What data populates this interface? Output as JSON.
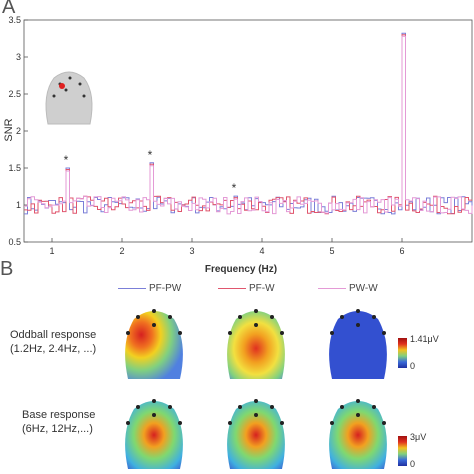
{
  "panels": {
    "a": "A",
    "b": "B"
  },
  "chart_data": {
    "type": "line",
    "xlabel": "Frequency (Hz)",
    "ylabel": "SNR",
    "xlim": [
      0.6,
      7.0
    ],
    "ylim": [
      0.5,
      3.5
    ],
    "xticks": [
      "1",
      "2",
      "3",
      "4",
      "5",
      "6"
    ],
    "yticks": [
      "0.5",
      "1",
      "1.5",
      "2",
      "2.5",
      "3",
      "3.5"
    ],
    "grid": false,
    "series": [
      {
        "name": "PF-PW",
        "color": "#7b7fd8"
      },
      {
        "name": "PF-W",
        "color": "#e0566e"
      },
      {
        "name": "PW-W",
        "color": "#e49ad6"
      }
    ],
    "peaks": [
      {
        "x": 1.2,
        "y": 1.5,
        "star": "*"
      },
      {
        "x": 2.4,
        "y": 1.57,
        "star": "*"
      },
      {
        "x": 3.6,
        "y": 1.12,
        "star": "*"
      },
      {
        "x": 6.0,
        "y": 3.32,
        "star": ""
      }
    ],
    "baseline": 1.0,
    "noise_amplitude": 0.12
  },
  "maps": {
    "rows": [
      {
        "label_line1": "Oddball response",
        "label_line2": "(1.2Hz, 2.4Hz, ...)",
        "cbar_max": "1.41μV",
        "cbar_min": "0"
      },
      {
        "label_line1": "Base response",
        "label_line2": "(6Hz, 12Hz,...)",
        "cbar_max": "3μV",
        "cbar_min": "0"
      }
    ]
  },
  "colors": {
    "hot": "#d62020",
    "warm": "#f2b01e",
    "mid": "#7fd77a",
    "cool": "#3a63d6",
    "cold": "#2a3fc0"
  }
}
